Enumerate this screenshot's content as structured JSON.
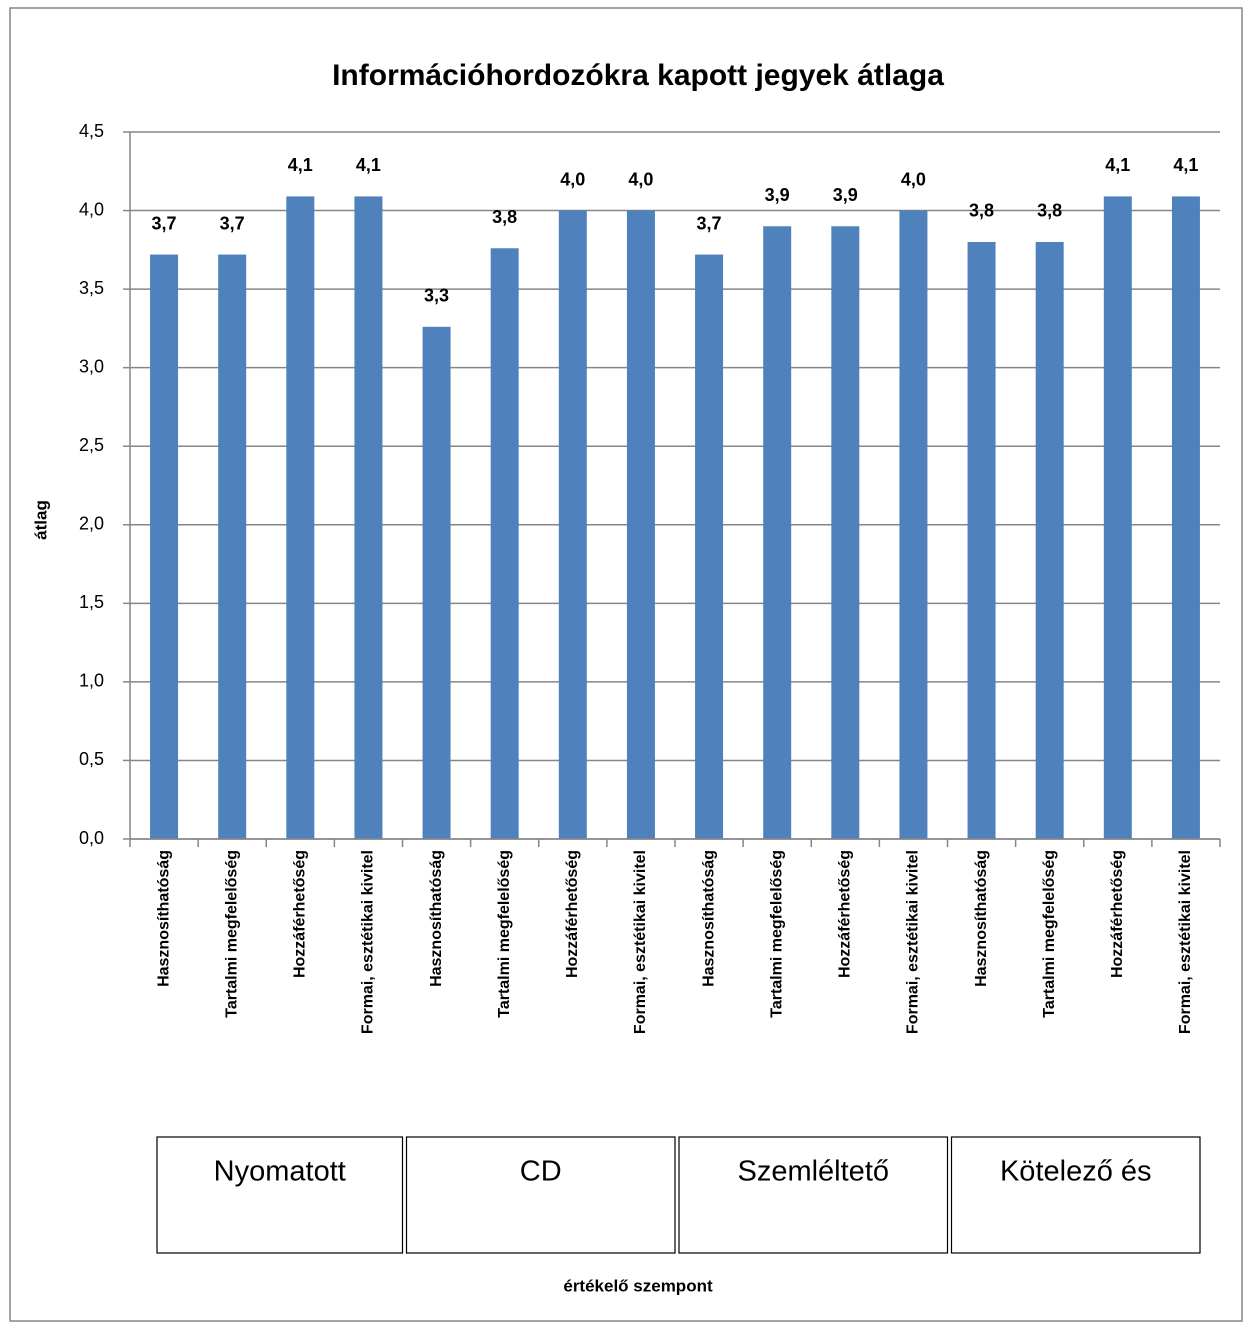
{
  "chart_data": {
    "type": "bar",
    "title": "Információhordozókra kapott jegyek átlaga",
    "y_label": "átlag",
    "x_label": "értékelő szempont",
    "categories": [
      "Hasznosíthatóság",
      "Tartalmi megfelelőség",
      "Hozzáférhetőség",
      "Formai, esztétikai kivitel",
      "Hasznosíthatóság",
      "Tartalmi megfelelőség",
      "Hozzáférhetőség",
      "Formai, esztétikai kivitel",
      "Hasznosíthatóság",
      "Tartalmi megfelelőség",
      "Hozzáférhetőség",
      "Formai, esztétikai kivitel",
      "Hasznosíthatóság",
      "Tartalmi megfelelőség",
      "Hozzáférhetőség",
      "Formai, esztétikai kivitel"
    ],
    "group_labels": [
      "Nyomatott",
      "CD",
      "Szemléltető",
      "Kötelező és"
    ],
    "values": [
      3.72,
      3.72,
      4.09,
      4.09,
      3.26,
      3.76,
      4.0,
      4.0,
      3.72,
      3.9,
      3.9,
      4.0,
      3.8,
      3.8,
      4.09,
      4.09
    ],
    "value_labels": [
      "3,7",
      "3,7",
      "4,1",
      "4,1",
      "3,3",
      "3,8",
      "4,0",
      "4,0",
      "3,7",
      "3,9",
      "3,9",
      "4,0",
      "3,8",
      "3,8",
      "4,1",
      "4,1"
    ],
    "color": "#4f81bd",
    "ylim": [
      0,
      4.5
    ],
    "yticks": [
      {
        "value": 0,
        "label": "0,0"
      },
      {
        "value": 0.5,
        "label": "0,5"
      },
      {
        "value": 1,
        "label": "1,0"
      },
      {
        "value": 1.5,
        "label": "1,5"
      },
      {
        "value": 2,
        "label": "2,0"
      },
      {
        "value": 2.5,
        "label": "2,5"
      },
      {
        "value": 3,
        "label": "3,0"
      },
      {
        "value": 3.5,
        "label": "3,5"
      },
      {
        "value": 4,
        "label": "4,0"
      },
      {
        "value": 4.5,
        "label": "4,5"
      }
    ],
    "grid": true
  }
}
